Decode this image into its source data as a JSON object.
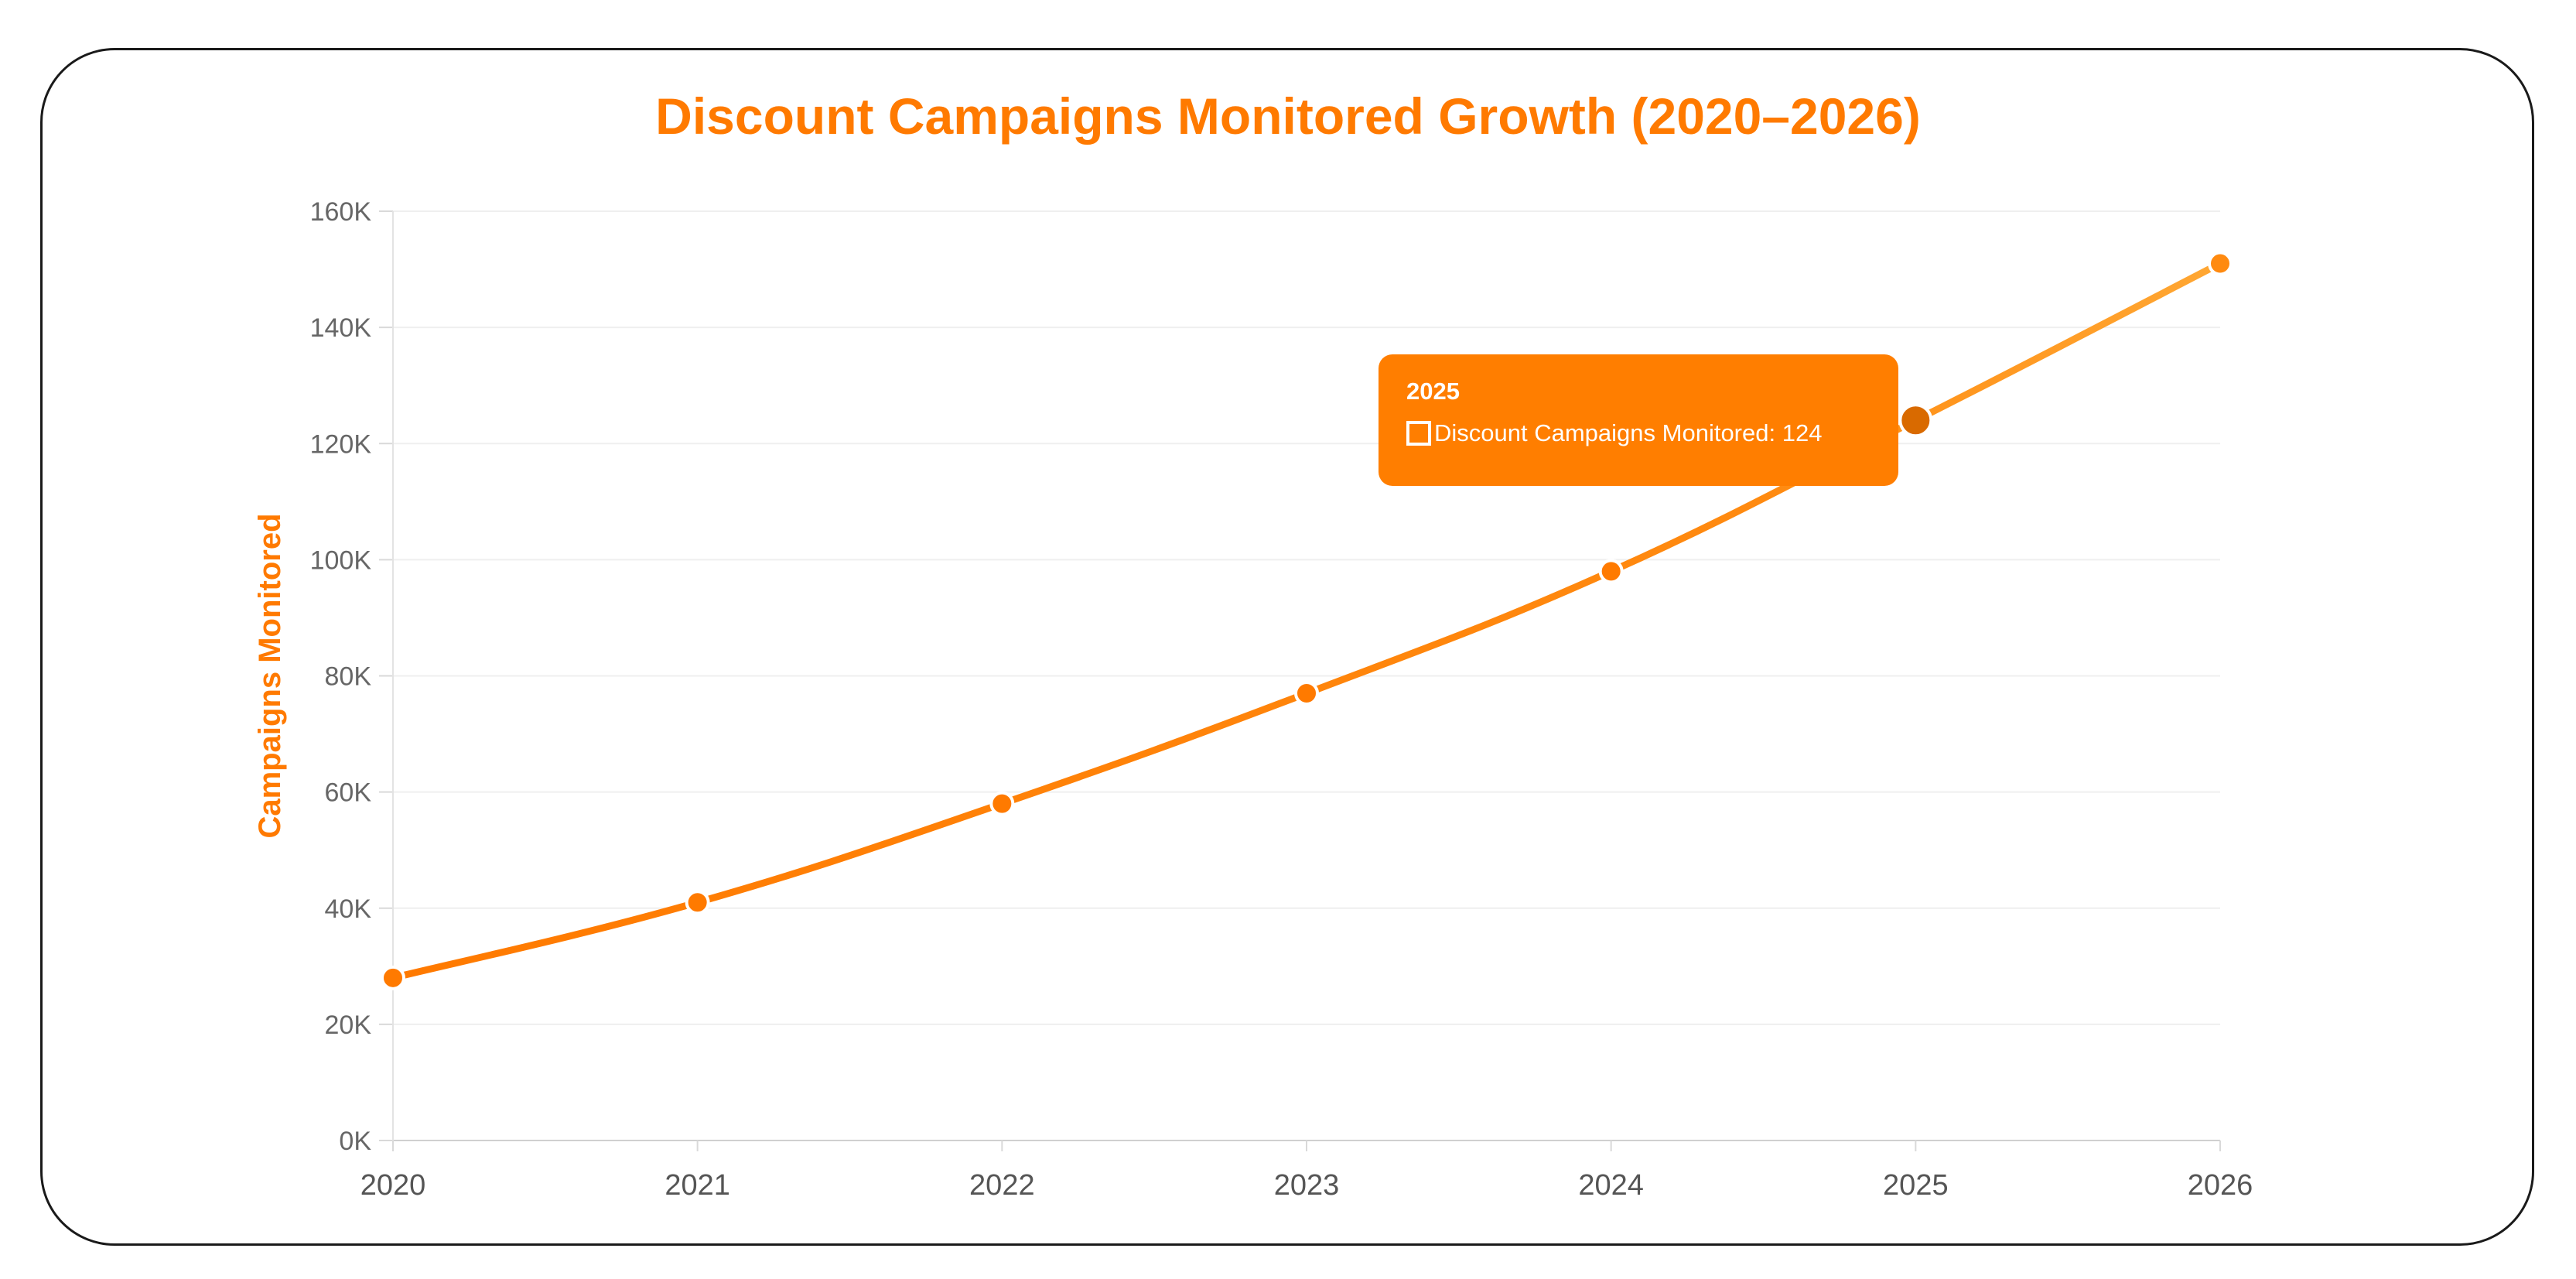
{
  "chart_data": {
    "type": "line",
    "title": "Discount Campaigns Monitored Growth (2020–2026)",
    "xlabel": "",
    "ylabel": "Campaigns Monitored",
    "x": [
      "2020",
      "2021",
      "2022",
      "2023",
      "2024",
      "2025",
      "2026"
    ],
    "series": [
      {
        "name": "Discount Campaigns Monitored",
        "values": [
          28,
          41,
          58,
          77,
          98,
          124,
          151
        ]
      }
    ],
    "ylim": [
      0,
      160
    ],
    "y_ticks": [
      "0K",
      "20K",
      "40K",
      "60K",
      "80K",
      "100K",
      "120K",
      "140K",
      "160K"
    ],
    "grid": true,
    "legend": "none",
    "line_color": "#ff8000",
    "line_color_end": "#ffa733",
    "tooltip": {
      "title": "2025",
      "label": "Discount Campaigns Monitored: 124"
    }
  }
}
